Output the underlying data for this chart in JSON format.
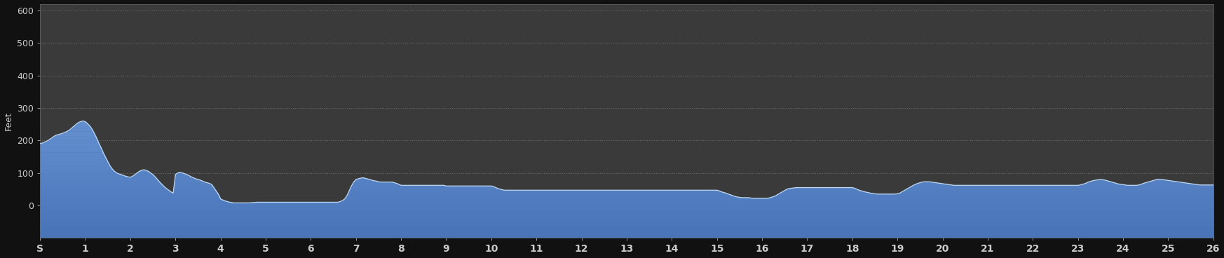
{
  "background_color": "#111111",
  "plot_bg_color": "#3a3a3a",
  "fill_color_top": "#5080c0",
  "fill_color_bottom": "#3060a8",
  "line_color": "#c0d8f0",
  "ylabel": "Feet",
  "ylim": [
    -100,
    620
  ],
  "yticks": [
    0,
    100,
    200,
    300,
    400,
    500,
    600
  ],
  "ytick_labels": [
    "0",
    "100",
    "200",
    "300",
    "400",
    "500",
    "600"
  ],
  "xtick_labels": [
    "S",
    "1",
    "2",
    "3",
    "4",
    "5",
    "6",
    "7",
    "8",
    "9",
    "10",
    "11",
    "12",
    "13",
    "14",
    "15",
    "16",
    "17",
    "18",
    "19",
    "20",
    "21",
    "22",
    "23",
    "24",
    "25",
    "26"
  ],
  "grid_color": "#888888",
  "text_color": "#cccccc",
  "elevation_x": [
    0.0,
    0.05,
    0.1,
    0.15,
    0.2,
    0.25,
    0.3,
    0.35,
    0.4,
    0.45,
    0.5,
    0.55,
    0.6,
    0.65,
    0.7,
    0.75,
    0.8,
    0.85,
    0.9,
    0.95,
    1.0,
    1.05,
    1.1,
    1.15,
    1.2,
    1.25,
    1.3,
    1.35,
    1.4,
    1.45,
    1.5,
    1.55,
    1.6,
    1.65,
    1.7,
    1.75,
    1.8,
    1.85,
    1.9,
    1.95,
    2.0,
    2.05,
    2.1,
    2.15,
    2.2,
    2.25,
    2.3,
    2.35,
    2.4,
    2.45,
    2.5,
    2.55,
    2.6,
    2.65,
    2.7,
    2.75,
    2.8,
    2.85,
    2.9,
    2.95,
    3.0,
    3.05,
    3.1,
    3.15,
    3.2,
    3.25,
    3.3,
    3.35,
    3.4,
    3.45,
    3.5,
    3.55,
    3.6,
    3.65,
    3.7,
    3.75,
    3.8,
    3.85,
    3.9,
    3.95,
    4.0,
    4.05,
    4.1,
    4.15,
    4.2,
    4.25,
    4.3,
    4.35,
    4.4,
    4.45,
    4.5,
    4.55,
    4.6,
    4.65,
    4.7,
    4.75,
    4.8,
    4.85,
    4.9,
    4.95,
    5.0,
    5.05,
    5.1,
    5.15,
    5.2,
    5.25,
    5.3,
    5.35,
    5.4,
    5.45,
    5.5,
    5.55,
    5.6,
    5.65,
    5.7,
    5.75,
    5.8,
    5.85,
    5.9,
    5.95,
    6.0,
    6.05,
    6.1,
    6.15,
    6.2,
    6.25,
    6.3,
    6.35,
    6.4,
    6.45,
    6.5,
    6.55,
    6.6,
    6.65,
    6.7,
    6.75,
    6.8,
    6.85,
    6.9,
    6.95,
    7.0,
    7.05,
    7.1,
    7.15,
    7.2,
    7.25,
    7.3,
    7.35,
    7.4,
    7.45,
    7.5,
    7.55,
    7.6,
    7.65,
    7.7,
    7.75,
    7.8,
    7.85,
    7.9,
    7.95,
    8.0,
    8.05,
    8.1,
    8.15,
    8.2,
    8.25,
    8.3,
    8.35,
    8.4,
    8.45,
    8.5,
    8.55,
    8.6,
    8.65,
    8.7,
    8.75,
    8.8,
    8.85,
    8.9,
    8.95,
    9.0,
    9.05,
    9.1,
    9.15,
    9.2,
    9.25,
    9.3,
    9.35,
    9.4,
    9.45,
    9.5,
    9.55,
    9.6,
    9.65,
    9.7,
    9.75,
    9.8,
    9.85,
    9.9,
    9.95,
    10.0,
    10.05,
    10.1,
    10.15,
    10.2,
    10.25,
    10.3,
    10.35,
    10.4,
    10.45,
    10.5,
    10.55,
    10.6,
    10.65,
    10.7,
    10.75,
    10.8,
    10.85,
    10.9,
    10.95,
    11.0,
    11.05,
    11.1,
    11.15,
    11.2,
    11.25,
    11.3,
    11.35,
    11.4,
    11.45,
    11.5,
    11.55,
    11.6,
    11.65,
    11.7,
    11.75,
    11.8,
    11.85,
    11.9,
    11.95,
    12.0,
    12.05,
    12.1,
    12.15,
    12.2,
    12.25,
    12.3,
    12.35,
    12.4,
    12.45,
    12.5,
    12.55,
    12.6,
    12.65,
    12.7,
    12.75,
    12.8,
    12.85,
    12.9,
    12.95,
    13.0,
    13.05,
    13.1,
    13.15,
    13.2,
    13.25,
    13.3,
    13.35,
    13.4,
    13.45,
    13.5,
    13.55,
    13.6,
    13.65,
    13.7,
    13.75,
    13.8,
    13.85,
    13.9,
    13.95,
    14.0,
    14.05,
    14.1,
    14.15,
    14.2,
    14.25,
    14.3,
    14.35,
    14.4,
    14.45,
    14.5,
    14.55,
    14.6,
    14.65,
    14.7,
    14.75,
    14.8,
    14.85,
    14.9,
    14.95,
    15.0,
    15.05,
    15.1,
    15.15,
    15.2,
    15.25,
    15.3,
    15.35,
    15.4,
    15.45,
    15.5,
    15.55,
    15.6,
    15.65,
    15.7,
    15.75,
    15.8,
    15.85,
    15.9,
    15.95,
    16.0,
    16.05,
    16.1,
    16.15,
    16.2,
    16.25,
    16.3,
    16.35,
    16.4,
    16.45,
    16.5,
    16.55,
    16.6,
    16.65,
    16.7,
    16.75,
    16.8,
    16.85,
    16.9,
    16.95,
    17.0,
    17.05,
    17.1,
    17.15,
    17.2,
    17.25,
    17.3,
    17.35,
    17.4,
    17.45,
    17.5,
    17.55,
    17.6,
    17.65,
    17.7,
    17.75,
    17.8,
    17.85,
    17.9,
    17.95,
    18.0,
    18.05,
    18.1,
    18.15,
    18.2,
    18.25,
    18.3,
    18.35,
    18.4,
    18.45,
    18.5,
    18.55,
    18.6,
    18.65,
    18.7,
    18.75,
    18.8,
    18.85,
    18.9,
    18.95,
    19.0,
    19.05,
    19.1,
    19.15,
    19.2,
    19.25,
    19.3,
    19.35,
    19.4,
    19.45,
    19.5,
    19.55,
    19.6,
    19.65,
    19.7,
    19.75,
    19.8,
    19.85,
    19.9,
    19.95,
    20.0,
    20.05,
    20.1,
    20.15,
    20.2,
    20.25,
    20.3,
    20.35,
    20.4,
    20.45,
    20.5,
    20.55,
    20.6,
    20.65,
    20.7,
    20.75,
    20.8,
    20.85,
    20.9,
    20.95,
    21.0,
    21.05,
    21.1,
    21.15,
    21.2,
    21.25,
    21.3,
    21.35,
    21.4,
    21.45,
    21.5,
    21.55,
    21.6,
    21.65,
    21.7,
    21.75,
    21.8,
    21.85,
    21.9,
    21.95,
    22.0,
    22.05,
    22.1,
    22.15,
    22.2,
    22.25,
    22.3,
    22.35,
    22.4,
    22.45,
    22.5,
    22.55,
    22.6,
    22.65,
    22.7,
    22.75,
    22.8,
    22.85,
    22.9,
    22.95,
    23.0,
    23.05,
    23.1,
    23.15,
    23.2,
    23.25,
    23.3,
    23.35,
    23.4,
    23.45,
    23.5,
    23.55,
    23.6,
    23.65,
    23.7,
    23.75,
    23.8,
    23.85,
    23.9,
    23.95,
    24.0,
    24.05,
    24.1,
    24.15,
    24.2,
    24.25,
    24.3,
    24.35,
    24.4,
    24.45,
    24.5,
    24.55,
    24.6,
    24.65,
    24.7,
    24.75,
    24.8,
    24.85,
    24.9,
    24.95,
    25.0,
    25.05,
    25.1,
    25.15,
    25.2,
    25.25,
    25.3,
    25.35,
    25.4,
    25.45,
    25.5,
    25.55,
    25.6,
    25.65,
    25.7,
    25.75,
    25.8,
    25.85,
    25.9,
    25.95,
    26.0
  ],
  "elevation_y": [
    190,
    192,
    195,
    198,
    202,
    207,
    212,
    216,
    218,
    220,
    222,
    225,
    228,
    232,
    238,
    244,
    250,
    255,
    258,
    260,
    258,
    252,
    245,
    235,
    222,
    208,
    192,
    178,
    162,
    148,
    135,
    122,
    112,
    105,
    100,
    97,
    95,
    92,
    90,
    88,
    87,
    90,
    95,
    100,
    105,
    108,
    110,
    108,
    105,
    100,
    95,
    88,
    80,
    72,
    65,
    58,
    52,
    47,
    42,
    38,
    95,
    100,
    102,
    100,
    98,
    95,
    92,
    88,
    85,
    82,
    80,
    78,
    75,
    72,
    70,
    68,
    65,
    55,
    45,
    35,
    20,
    17,
    14,
    12,
    10,
    9,
    8,
    8,
    8,
    8,
    8,
    8,
    8,
    8,
    9,
    9,
    10,
    10,
    10,
    10,
    10,
    10,
    10,
    10,
    10,
    10,
    10,
    10,
    10,
    10,
    10,
    10,
    10,
    10,
    10,
    10,
    10,
    10,
    10,
    10,
    10,
    10,
    10,
    10,
    10,
    10,
    10,
    10,
    10,
    10,
    10,
    10,
    10,
    12,
    15,
    20,
    30,
    45,
    60,
    72,
    80,
    82,
    84,
    85,
    84,
    82,
    80,
    78,
    76,
    75,
    73,
    72,
    72,
    72,
    72,
    72,
    72,
    70,
    68,
    65,
    62,
    62,
    62,
    62,
    62,
    62,
    62,
    62,
    62,
    62,
    62,
    62,
    62,
    62,
    62,
    62,
    62,
    62,
    62,
    62,
    60,
    60,
    60,
    60,
    60,
    60,
    60,
    60,
    60,
    60,
    60,
    60,
    60,
    60,
    60,
    60,
    60,
    60,
    60,
    60,
    60,
    58,
    55,
    52,
    50,
    48,
    47,
    47,
    47,
    47,
    47,
    47,
    47,
    47,
    47,
    47,
    47,
    47,
    47,
    47,
    47,
    47,
    47,
    47,
    47,
    47,
    47,
    47,
    47,
    47,
    47,
    47,
    47,
    47,
    47,
    47,
    47,
    47,
    47,
    47,
    47,
    47,
    47,
    47,
    47,
    47,
    47,
    47,
    47,
    47,
    47,
    47,
    47,
    47,
    47,
    47,
    47,
    47,
    47,
    47,
    47,
    47,
    47,
    47,
    47,
    47,
    47,
    47,
    47,
    47,
    47,
    47,
    47,
    47,
    47,
    47,
    47,
    47,
    47,
    47,
    47,
    47,
    47,
    47,
    47,
    47,
    47,
    47,
    47,
    47,
    47,
    47,
    47,
    47,
    47,
    47,
    47,
    47,
    47,
    47,
    47,
    45,
    42,
    40,
    38,
    35,
    33,
    30,
    28,
    26,
    25,
    24,
    24,
    24,
    24,
    23,
    22,
    22,
    22,
    22,
    22,
    22,
    22,
    23,
    25,
    27,
    30,
    34,
    38,
    42,
    46,
    50,
    52,
    53,
    54,
    55,
    55,
    55,
    55,
    55,
    55,
    55,
    55,
    55,
    55,
    55,
    55,
    55,
    55,
    55,
    55,
    55,
    55,
    55,
    55,
    55,
    55,
    55,
    55,
    55,
    55,
    53,
    50,
    47,
    45,
    43,
    41,
    40,
    38,
    37,
    36,
    35,
    35,
    35,
    35,
    35,
    35,
    35,
    35,
    35,
    36,
    38,
    42,
    46,
    50,
    54,
    58,
    62,
    65,
    68,
    70,
    72,
    73,
    73,
    73,
    72,
    71,
    70,
    69,
    68,
    67,
    66,
    65,
    64,
    63,
    62,
    62,
    62,
    62,
    62,
    62,
    62,
    62,
    62,
    62,
    62,
    62,
    62,
    62,
    62,
    62,
    62,
    62,
    62,
    62,
    62,
    62,
    62,
    62,
    62,
    62,
    62,
    62,
    62,
    62,
    62,
    62,
    62,
    62,
    62,
    62,
    62,
    62,
    62,
    62,
    62,
    62,
    62,
    62,
    62,
    62,
    62,
    62,
    62,
    62,
    62,
    62,
    62,
    62,
    62,
    62,
    63,
    65,
    67,
    70,
    73,
    75,
    77,
    78,
    79,
    80,
    79,
    78,
    76,
    74,
    72,
    70,
    68,
    66,
    65,
    64,
    63,
    62,
    62,
    62,
    62,
    62,
    63,
    65,
    68,
    70,
    72,
    74,
    76,
    78,
    80,
    80,
    80,
    79,
    78,
    77,
    76,
    75,
    74,
    73,
    72,
    71,
    70,
    69,
    68,
    67,
    66,
    65,
    64,
    63,
    63,
    63,
    63,
    63,
    63,
    63
  ]
}
